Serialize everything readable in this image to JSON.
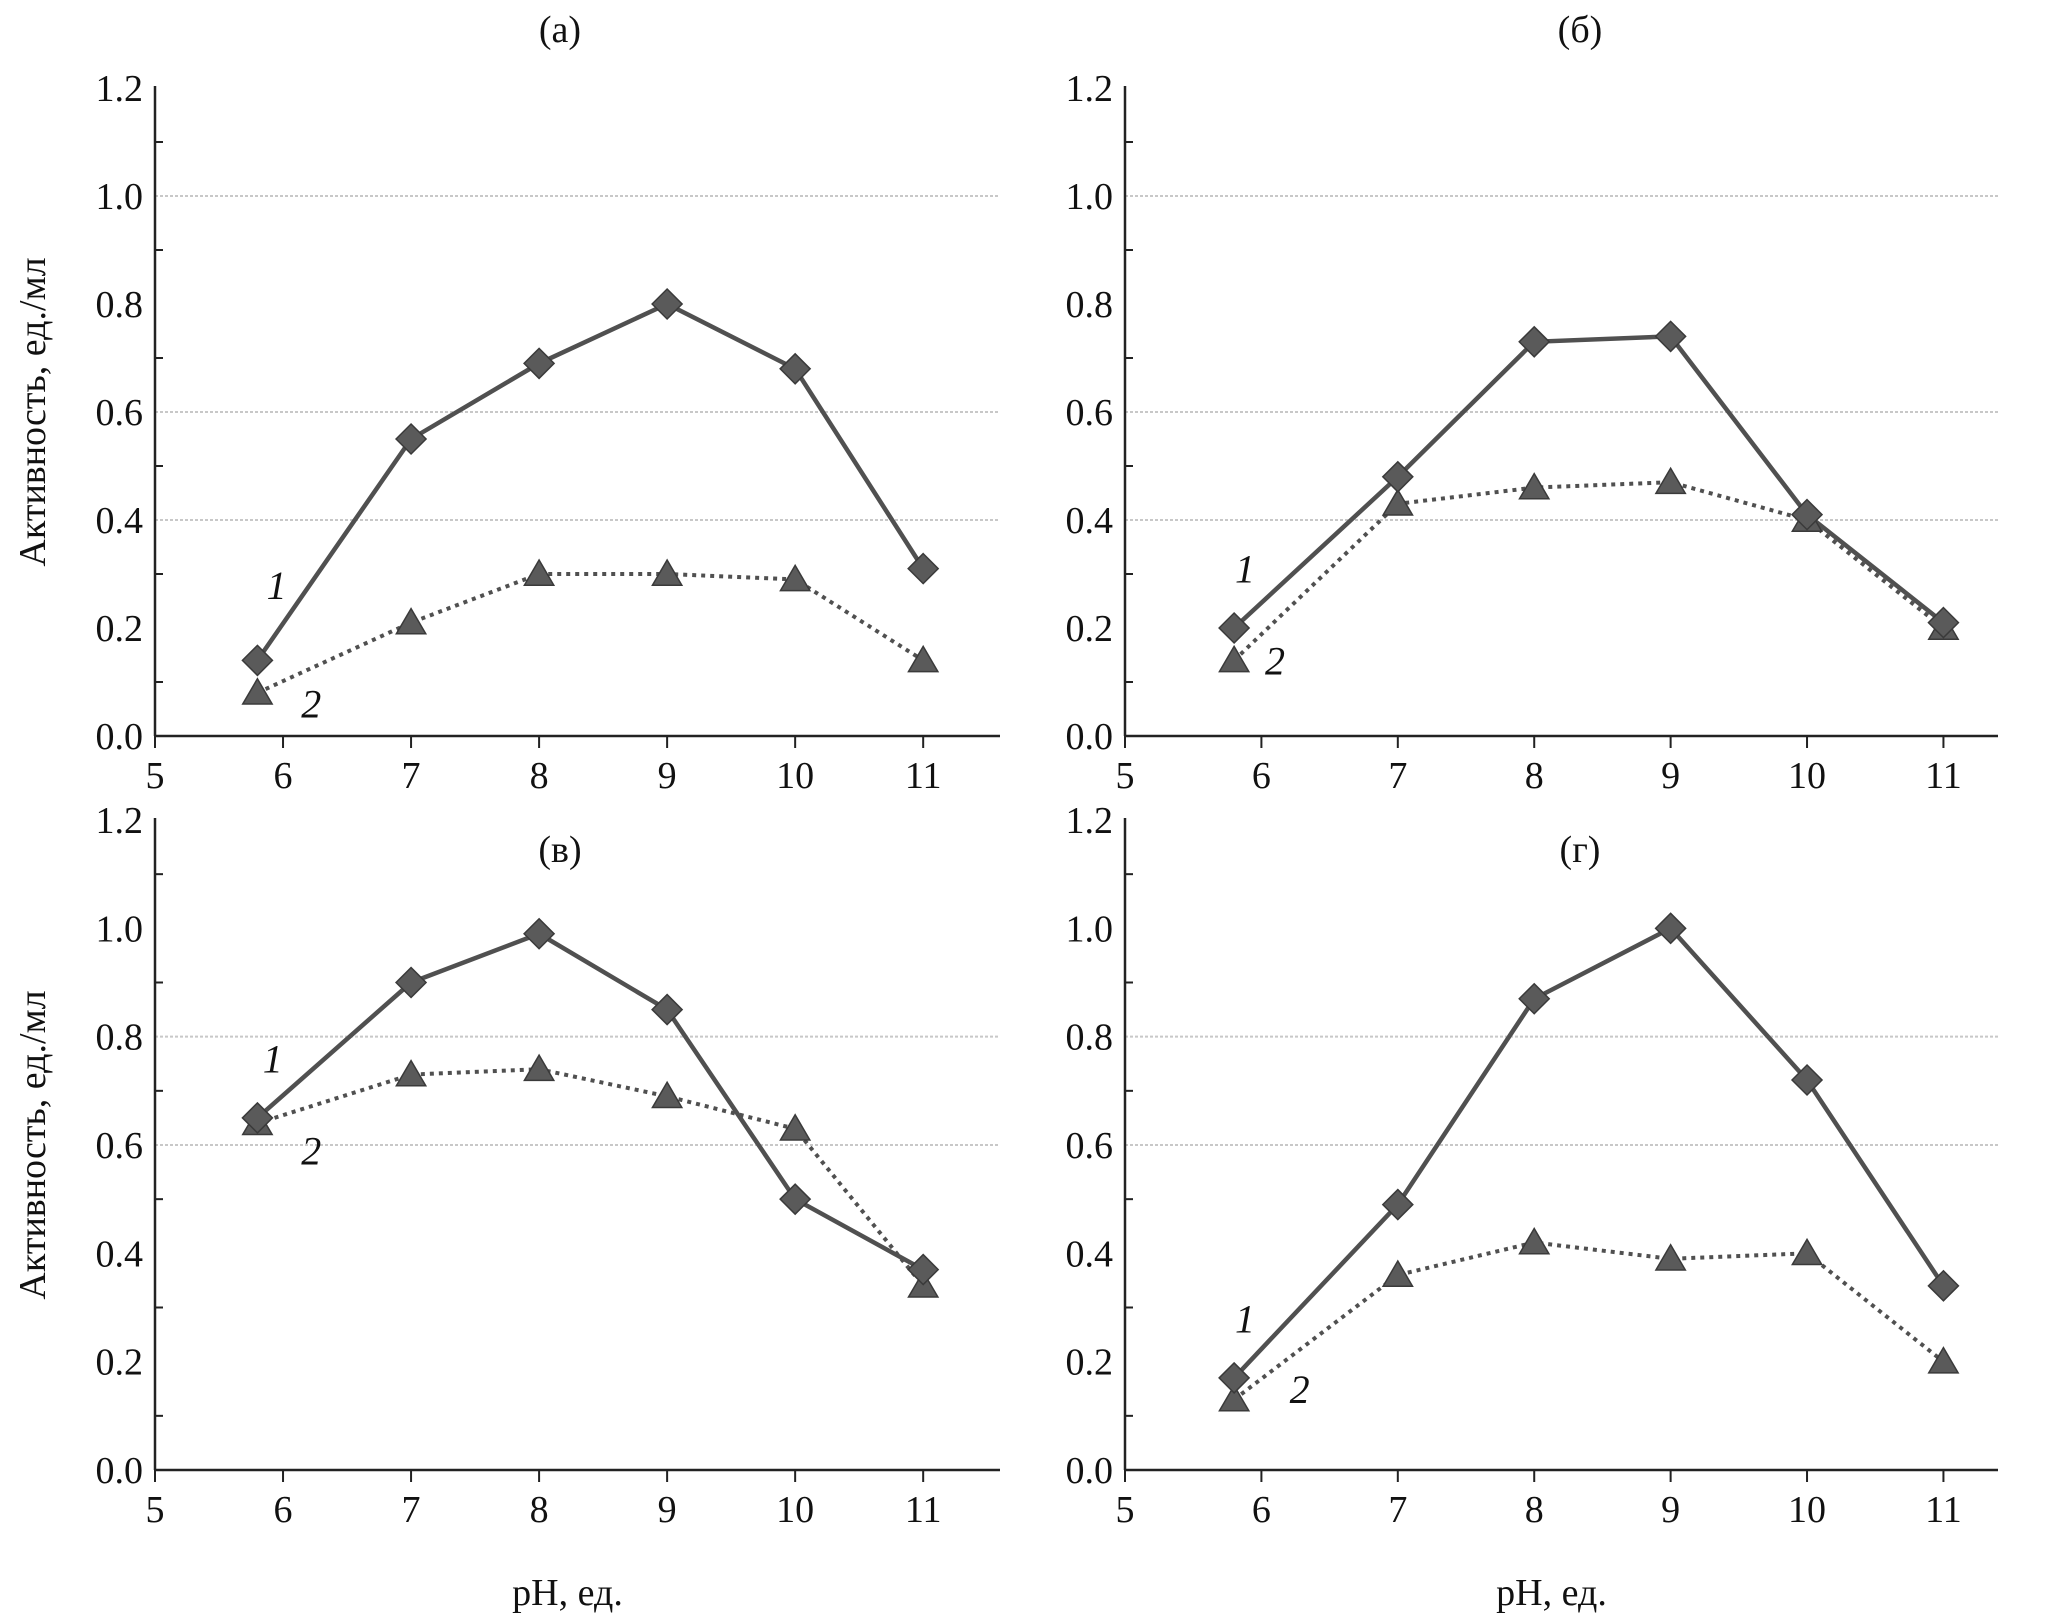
{
  "chart_data": [
    {
      "type": "line",
      "title": "(а)",
      "xlabel": "",
      "ylabel": "Активность, ед./мл",
      "xlim": [
        5,
        11.6
      ],
      "ylim": [
        0,
        1.2
      ],
      "xticks": [
        "5",
        "6",
        "7",
        "8",
        "9",
        "10",
        "11"
      ],
      "yticks": [
        "0.0",
        "0.2",
        "0.4",
        "0.6",
        "0.8",
        "1.0",
        "1.2"
      ],
      "grid_y": [
        0.6,
        0.4,
        1.0
      ],
      "series": [
        {
          "name": "1",
          "style": "solid",
          "marker": "diamond",
          "x": [
            5.8,
            7,
            8,
            9,
            10,
            11
          ],
          "y": [
            0.14,
            0.55,
            0.69,
            0.8,
            0.68,
            0.31
          ]
        },
        {
          "name": "2",
          "style": "dotted",
          "marker": "triangle",
          "x": [
            5.8,
            7,
            8,
            9,
            10,
            11
          ],
          "y": [
            0.08,
            0.21,
            0.3,
            0.3,
            0.29,
            0.14
          ]
        }
      ],
      "annotations": [
        {
          "text": "1",
          "x": 5.95,
          "y": 0.28
        },
        {
          "text": "2",
          "x": 6.22,
          "y": 0.06
        }
      ]
    },
    {
      "type": "line",
      "title": "(б)",
      "xlabel": "",
      "ylabel": "",
      "xlim": [
        5,
        11.4
      ],
      "ylim": [
        0,
        1.2
      ],
      "xticks": [
        "5",
        "6",
        "7",
        "8",
        "9",
        "10",
        "11"
      ],
      "yticks": [
        "0.0",
        "0.2",
        "0.4",
        "0.6",
        "0.8",
        "1.0",
        "1.2"
      ],
      "grid_y": [
        0.6,
        0.4,
        1.0
      ],
      "series": [
        {
          "name": "1",
          "style": "solid",
          "marker": "diamond",
          "x": [
            5.8,
            7,
            8,
            9,
            10,
            11
          ],
          "y": [
            0.2,
            0.48,
            0.73,
            0.74,
            0.41,
            0.21
          ]
        },
        {
          "name": "2",
          "style": "dotted",
          "marker": "triangle",
          "x": [
            5.8,
            7,
            8,
            9,
            10,
            11
          ],
          "y": [
            0.14,
            0.43,
            0.46,
            0.47,
            0.4,
            0.2
          ]
        }
      ],
      "annotations": [
        {
          "text": "1",
          "x": 5.88,
          "y": 0.31
        },
        {
          "text": "2",
          "x": 6.1,
          "y": 0.14
        }
      ]
    },
    {
      "type": "line",
      "title": "(в)",
      "xlabel": "pH, ед.",
      "ylabel": "Активность, ед./мл",
      "xlim": [
        5,
        11.6
      ],
      "ylim": [
        0,
        1.2
      ],
      "xticks": [
        "5",
        "6",
        "7",
        "8",
        "9",
        "10",
        "11"
      ],
      "yticks": [
        "0.0",
        "0.2",
        "0.4",
        "0.6",
        "0.8",
        "1.0",
        "1.2"
      ],
      "grid_y": [
        0.8,
        0.6
      ],
      "series": [
        {
          "name": "1",
          "style": "solid",
          "marker": "diamond",
          "x": [
            5.8,
            7,
            8,
            9,
            10,
            11
          ],
          "y": [
            0.65,
            0.9,
            0.99,
            0.85,
            0.5,
            0.37
          ]
        },
        {
          "name": "2",
          "style": "dotted",
          "marker": "triangle",
          "x": [
            5.8,
            7,
            8,
            9,
            10,
            11
          ],
          "y": [
            0.64,
            0.73,
            0.74,
            0.69,
            0.63,
            0.34
          ]
        }
      ],
      "annotations": [
        {
          "text": "1",
          "x": 5.92,
          "y": 0.76
        },
        {
          "text": "2",
          "x": 6.22,
          "y": 0.59
        }
      ]
    },
    {
      "type": "line",
      "title": "(г)",
      "xlabel": "pH, ед.",
      "ylabel": "",
      "xlim": [
        5,
        11.4
      ],
      "ylim": [
        0,
        1.2
      ],
      "xticks": [
        "5",
        "6",
        "7",
        "8",
        "9",
        "10",
        "11"
      ],
      "yticks": [
        "0.0",
        "0.2",
        "0.4",
        "0.6",
        "0.8",
        "1.0",
        "1.2"
      ],
      "grid_y": [
        0.8,
        0.6
      ],
      "series": [
        {
          "name": "1",
          "style": "solid",
          "marker": "diamond",
          "x": [
            5.8,
            7,
            8,
            9,
            10,
            11
          ],
          "y": [
            0.17,
            0.49,
            0.87,
            1.0,
            0.72,
            0.34
          ]
        },
        {
          "name": "2",
          "style": "dotted",
          "marker": "triangle",
          "x": [
            5.8,
            7,
            8,
            9,
            10,
            11
          ],
          "y": [
            0.13,
            0.36,
            0.42,
            0.39,
            0.4,
            0.2
          ]
        }
      ],
      "annotations": [
        {
          "text": "1",
          "x": 5.88,
          "y": 0.28
        },
        {
          "text": "2",
          "x": 6.28,
          "y": 0.15
        }
      ]
    }
  ]
}
